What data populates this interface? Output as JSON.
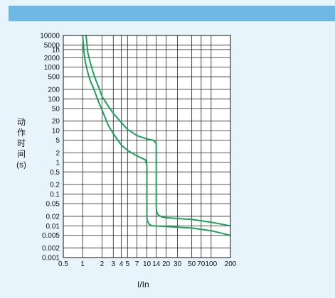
{
  "chart_data": {
    "type": "line",
    "title": "",
    "xlabel": "I/In",
    "ylabel_chars": [
      "动",
      "作",
      "时",
      "间",
      "(s)"
    ],
    "x_scale": "log",
    "y_scale": "log",
    "xlim": [
      0.5,
      200
    ],
    "ylim": [
      0.001,
      10000
    ],
    "grid": true,
    "x_ticks": [
      {
        "v": 0.5,
        "label": "0.5"
      },
      {
        "v": 1,
        "label": "1"
      },
      {
        "v": 2,
        "label": "2"
      },
      {
        "v": 3,
        "label": "3"
      },
      {
        "v": 4,
        "label": "4"
      },
      {
        "v": 5,
        "label": "5"
      },
      {
        "v": 7,
        "label": "7"
      },
      {
        "v": 10,
        "label": "10"
      },
      {
        "v": 14,
        "label": "14"
      },
      {
        "v": 20,
        "label": "20"
      },
      {
        "v": 30,
        "label": "30"
      },
      {
        "v": 50,
        "label": "50"
      },
      {
        "v": 70,
        "label": "70"
      },
      {
        "v": 100,
        "label": "100"
      },
      {
        "v": 200,
        "label": "200"
      }
    ],
    "y_ticks": [
      {
        "v": 10000,
        "label": "10000"
      },
      {
        "v": 5000,
        "label": "5000"
      },
      {
        "v": 3600,
        "label": "1h"
      },
      {
        "v": 2000,
        "label": "2000"
      },
      {
        "v": 1000,
        "label": "1000"
      },
      {
        "v": 500,
        "label": "500"
      },
      {
        "v": 200,
        "label": "200"
      },
      {
        "v": 100,
        "label": "100"
      },
      {
        "v": 50,
        "label": "50"
      },
      {
        "v": 20,
        "label": "20"
      },
      {
        "v": 10,
        "label": "10"
      },
      {
        "v": 5,
        "label": "5"
      },
      {
        "v": 2,
        "label": "2"
      },
      {
        "v": 1,
        "label": "1"
      },
      {
        "v": 0.5,
        "label": "0.5"
      },
      {
        "v": 0.2,
        "label": "0.2"
      },
      {
        "v": 0.1,
        "label": "0.1"
      },
      {
        "v": 0.05,
        "label": "0.05"
      },
      {
        "v": 0.02,
        "label": "0.02"
      },
      {
        "v": 0.01,
        "label": "0.01"
      },
      {
        "v": 0.005,
        "label": "0.005"
      },
      {
        "v": 0.002,
        "label": "0.002"
      },
      {
        "v": 0.001,
        "label": "0.001"
      }
    ],
    "series": [
      {
        "color": "#1aa35a",
        "x": [
          1.0,
          1.02,
          1.05,
          1.1,
          1.2,
          1.3,
          1.5,
          1.7,
          2.0,
          2.5,
          3.0,
          4.0,
          5.0,
          7.0,
          9.5,
          10.0,
          10.0,
          10.0,
          10.2,
          11,
          12,
          20,
          50,
          100,
          200
        ],
        "y": [
          10000,
          6000,
          3000,
          1500,
          700,
          400,
          200,
          100,
          45,
          15,
          8,
          3.5,
          2.4,
          1.6,
          1.2,
          0.8,
          0.1,
          0.018,
          0.014,
          0.011,
          0.01,
          0.0095,
          0.0085,
          0.007,
          0.005
        ]
      },
      {
        "color": "#1aa35a",
        "x": [
          1.13,
          1.16,
          1.2,
          1.3,
          1.45,
          1.6,
          1.8,
          2.0,
          2.5,
          3.0,
          4.0,
          5.0,
          7.0,
          10.0,
          12.5,
          14.0,
          14.0,
          14.0,
          14.2,
          15,
          17,
          20,
          50,
          100,
          200
        ],
        "y": [
          10000,
          6000,
          3000,
          1500,
          700,
          400,
          220,
          120,
          60,
          35,
          18,
          11,
          7,
          5.5,
          5,
          4,
          0.5,
          0.04,
          0.028,
          0.022,
          0.019,
          0.018,
          0.016,
          0.013,
          0.01
        ]
      }
    ]
  }
}
